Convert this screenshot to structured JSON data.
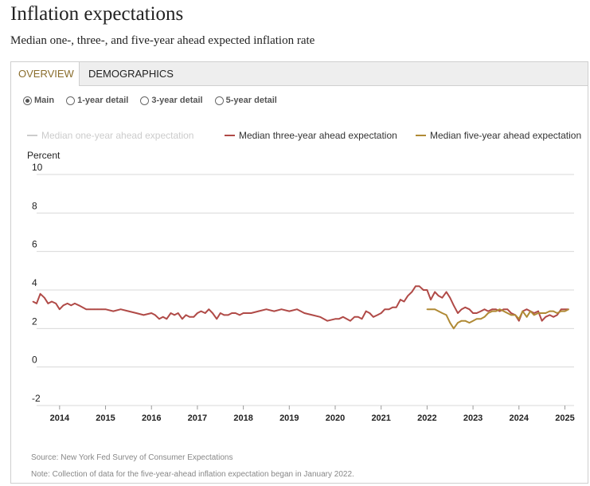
{
  "page": {
    "title": "Inflation expectations",
    "subtitle": "Median one-, three-, and five-year ahead expected inflation rate"
  },
  "tabs": [
    {
      "label": "OVERVIEW",
      "active": true
    },
    {
      "label": "DEMOGRAPHICS",
      "active": false
    }
  ],
  "radio_options": [
    {
      "label": "Main",
      "checked": true
    },
    {
      "label": "1-year detail",
      "checked": false
    },
    {
      "label": "3-year detail",
      "checked": false
    },
    {
      "label": "5-year detail",
      "checked": false
    }
  ],
  "footer": {
    "source": "Source: New York Fed Survey of Consumer Expectations",
    "note": "Note: Collection of data for the five-year-ahead inflation expectation began in January 2022."
  },
  "colors": {
    "one_year": "#cccccc",
    "three_year": "#b04a47",
    "five_year": "#b08a35",
    "grid": "#d8d8d8",
    "accent_tab": "#8a6d2c"
  },
  "chart_data": {
    "type": "line",
    "title": "",
    "xlabel": "",
    "ylabel": "Percent",
    "ylim": [
      -2,
      10
    ],
    "yticks": [
      10,
      8,
      6,
      4,
      2,
      0,
      -2
    ],
    "xlim": [
      2013.5,
      2025.2
    ],
    "xticks": [
      2014,
      2015,
      2016,
      2017,
      2018,
      2019,
      2020,
      2021,
      2022,
      2023,
      2024,
      2025
    ],
    "legend_position": "top",
    "series": [
      {
        "name": "Median one-year ahead expectation",
        "key": "one_year",
        "hidden": true,
        "x": [],
        "y": []
      },
      {
        "name": "Median three-year ahead expectation",
        "key": "three_year",
        "hidden": false,
        "x": [
          2013.42,
          2013.5,
          2013.58,
          2013.67,
          2013.75,
          2013.83,
          2013.92,
          2014.0,
          2014.08,
          2014.17,
          2014.25,
          2014.33,
          2014.42,
          2014.5,
          2014.58,
          2014.67,
          2014.75,
          2014.83,
          2014.92,
          2015.0,
          2015.17,
          2015.33,
          2015.5,
          2015.67,
          2015.83,
          2016.0,
          2016.08,
          2016.17,
          2016.25,
          2016.33,
          2016.42,
          2016.5,
          2016.58,
          2016.67,
          2016.75,
          2016.83,
          2016.92,
          2017.0,
          2017.08,
          2017.17,
          2017.25,
          2017.33,
          2017.42,
          2017.5,
          2017.58,
          2017.67,
          2017.75,
          2017.83,
          2017.92,
          2018.0,
          2018.17,
          2018.33,
          2018.5,
          2018.67,
          2018.83,
          2019.0,
          2019.17,
          2019.33,
          2019.5,
          2019.67,
          2019.83,
          2020.0,
          2020.08,
          2020.17,
          2020.25,
          2020.33,
          2020.42,
          2020.5,
          2020.58,
          2020.67,
          2020.75,
          2020.83,
          2020.92,
          2021.0,
          2021.08,
          2021.17,
          2021.25,
          2021.33,
          2021.42,
          2021.5,
          2021.58,
          2021.67,
          2021.75,
          2021.83,
          2021.92,
          2022.0,
          2022.08,
          2022.17,
          2022.25,
          2022.33,
          2022.42,
          2022.5,
          2022.58,
          2022.67,
          2022.75,
          2022.83,
          2022.92,
          2023.0,
          2023.08,
          2023.17,
          2023.25,
          2023.33,
          2023.42,
          2023.5,
          2023.58,
          2023.67,
          2023.75,
          2023.83,
          2023.92,
          2024.0,
          2024.08,
          2024.17,
          2024.25,
          2024.33,
          2024.42,
          2024.5,
          2024.58,
          2024.67,
          2024.75,
          2024.83,
          2024.92,
          2025.0,
          2025.08
        ],
        "y": [
          3.4,
          3.3,
          3.8,
          3.6,
          3.3,
          3.4,
          3.3,
          3.0,
          3.2,
          3.3,
          3.2,
          3.3,
          3.2,
          3.1,
          3.0,
          3.0,
          3.0,
          3.0,
          3.0,
          3.0,
          2.9,
          3.0,
          2.9,
          2.8,
          2.7,
          2.8,
          2.7,
          2.5,
          2.6,
          2.5,
          2.8,
          2.7,
          2.8,
          2.5,
          2.7,
          2.6,
          2.6,
          2.8,
          2.9,
          2.8,
          3.0,
          2.8,
          2.5,
          2.8,
          2.7,
          2.7,
          2.8,
          2.8,
          2.7,
          2.8,
          2.8,
          2.9,
          3.0,
          2.9,
          3.0,
          2.9,
          3.0,
          2.8,
          2.7,
          2.6,
          2.4,
          2.5,
          2.5,
          2.6,
          2.5,
          2.4,
          2.6,
          2.6,
          2.5,
          2.9,
          2.8,
          2.6,
          2.7,
          2.8,
          3.0,
          3.0,
          3.1,
          3.1,
          3.5,
          3.4,
          3.7,
          3.9,
          4.2,
          4.2,
          4.0,
          4.0,
          3.5,
          3.9,
          3.7,
          3.6,
          3.9,
          3.6,
          3.2,
          2.8,
          3.0,
          3.1,
          3.0,
          2.8,
          2.8,
          2.9,
          3.0,
          2.9,
          3.0,
          3.0,
          2.9,
          3.0,
          3.0,
          2.8,
          2.7,
          2.4,
          2.9,
          3.0,
          2.9,
          2.8,
          2.9,
          2.4,
          2.6,
          2.7,
          2.6,
          2.7,
          3.0,
          3.0,
          3.0
        ]
      },
      {
        "name": "Median five-year ahead expectation",
        "key": "five_year",
        "hidden": false,
        "x": [
          2022.0,
          2022.08,
          2022.17,
          2022.25,
          2022.33,
          2022.42,
          2022.5,
          2022.58,
          2022.67,
          2022.75,
          2022.83,
          2022.92,
          2023.0,
          2023.08,
          2023.17,
          2023.25,
          2023.33,
          2023.42,
          2023.5,
          2023.58,
          2023.67,
          2023.75,
          2023.83,
          2023.92,
          2024.0,
          2024.08,
          2024.17,
          2024.25,
          2024.33,
          2024.42,
          2024.5,
          2024.58,
          2024.67,
          2024.75,
          2024.83,
          2024.92,
          2025.0,
          2025.08
        ],
        "y": [
          3.0,
          3.0,
          3.0,
          2.9,
          2.8,
          2.7,
          2.3,
          2.0,
          2.3,
          2.4,
          2.4,
          2.3,
          2.4,
          2.5,
          2.5,
          2.6,
          2.8,
          2.9,
          2.9,
          3.0,
          2.9,
          2.8,
          2.7,
          2.7,
          2.5,
          2.9,
          2.6,
          2.9,
          2.7,
          2.8,
          2.8,
          2.8,
          2.9,
          2.9,
          2.8,
          2.9,
          2.9,
          3.0
        ]
      }
    ]
  }
}
